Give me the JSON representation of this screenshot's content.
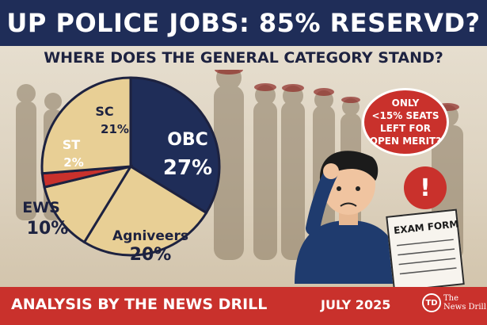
{
  "header": {
    "title": "UP POLICE JOBS: 85% RESERVD?",
    "subtitle": "WHERE DOES THE GENERAL CATEGORY STAND?"
  },
  "chart_data": {
    "type": "pie",
    "title": "",
    "slices": [
      {
        "label": "OBC",
        "value_label": "27%",
        "value": 27,
        "color": "#1f2d58"
      },
      {
        "label": "Agniveers",
        "value_label": "20%",
        "value": 20,
        "color": "#e8cf95"
      },
      {
        "label": "EWS",
        "value_label": "10%",
        "value": 10,
        "color": "#e8cf95"
      },
      {
        "label": "ST",
        "value_label": "2%",
        "value": 2,
        "color": "#c9312c"
      },
      {
        "label": "SC",
        "value_label": "21%",
        "value": 21,
        "color": "#e8cf95"
      }
    ]
  },
  "callout": {
    "lines": [
      "ONLY",
      "<15% SEATS",
      "LEFT FOR",
      "OPEN MERIT?"
    ],
    "alert_symbol": "!"
  },
  "exam_form": {
    "label": "EXAM FORM"
  },
  "footer": {
    "credit": "ANALYSIS BY THE NEWS DRILL",
    "date": "JULY 2025",
    "logo_mark": "TD",
    "logo_line1": "The",
    "logo_line2": "News Drill"
  },
  "colors": {
    "navy": "#1f2d58",
    "red": "#c9312c",
    "cream": "#e8cf95"
  }
}
